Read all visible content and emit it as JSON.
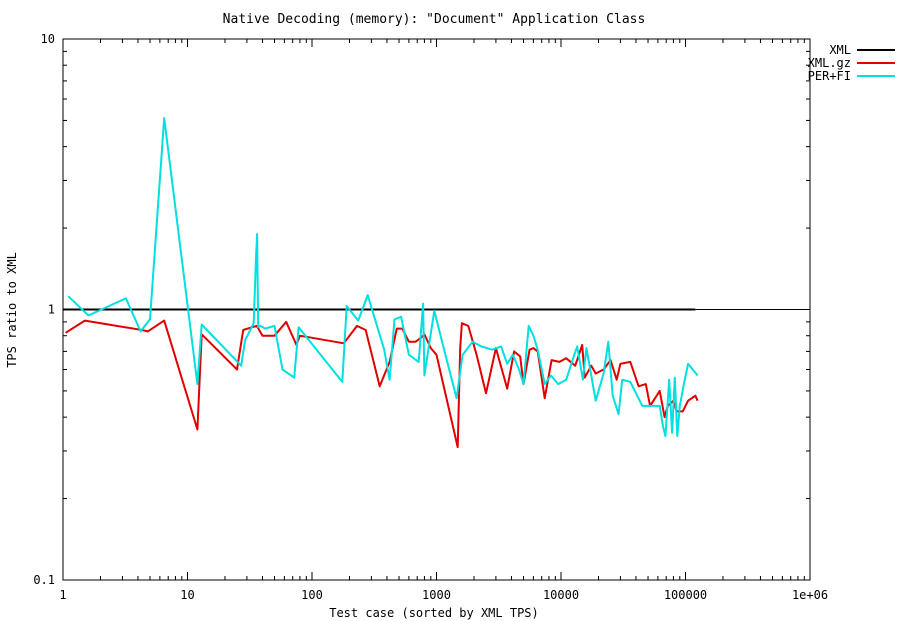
{
  "chart_data": {
    "type": "line",
    "title": "Native Decoding (memory): \"Document\" Application Class",
    "xlabel": "Test case (sorted by XML TPS)",
    "ylabel": "TPS ratio to XML",
    "x_scale": "log",
    "y_scale": "log",
    "xlim": [
      1,
      1000000
    ],
    "ylim": [
      0.1,
      10
    ],
    "x_ticks": [
      "1",
      "10",
      "100",
      "1000",
      "10000",
      "100000",
      "1e+06"
    ],
    "y_ticks": [
      "0.1",
      "1",
      "10"
    ],
    "legend_position": "top-right outside",
    "grid": false,
    "series": [
      {
        "name": "XML",
        "color": "#000000",
        "points": [
          [
            1,
            1.0
          ],
          [
            120000,
            1.0
          ]
        ]
      },
      {
        "name": "XML.gz",
        "color": "#e00000",
        "points": [
          [
            1.05,
            0.82
          ],
          [
            1.5,
            0.91
          ],
          [
            4.3,
            0.84
          ],
          [
            4.8,
            0.83
          ],
          [
            6.5,
            0.91
          ],
          [
            12,
            0.36
          ],
          [
            13,
            0.81
          ],
          [
            25,
            0.6
          ],
          [
            28,
            0.84
          ],
          [
            33,
            0.86
          ],
          [
            36,
            0.87
          ],
          [
            40,
            0.8
          ],
          [
            50,
            0.8
          ],
          [
            62,
            0.9
          ],
          [
            75,
            0.74
          ],
          [
            80,
            0.8
          ],
          [
            180,
            0.75
          ],
          [
            230,
            0.87
          ],
          [
            270,
            0.84
          ],
          [
            350,
            0.52
          ],
          [
            420,
            0.64
          ],
          [
            480,
            0.85
          ],
          [
            530,
            0.85
          ],
          [
            600,
            0.76
          ],
          [
            680,
            0.76
          ],
          [
            760,
            0.79
          ],
          [
            800,
            0.81
          ],
          [
            900,
            0.72
          ],
          [
            1000,
            0.68
          ],
          [
            1480,
            0.31
          ],
          [
            1550,
            0.72
          ],
          [
            1600,
            0.89
          ],
          [
            1800,
            0.87
          ],
          [
            2100,
            0.68
          ],
          [
            2500,
            0.49
          ],
          [
            3000,
            0.72
          ],
          [
            3700,
            0.51
          ],
          [
            4200,
            0.7
          ],
          [
            4700,
            0.67
          ],
          [
            5000,
            0.53
          ],
          [
            5600,
            0.71
          ],
          [
            6000,
            0.72
          ],
          [
            6500,
            0.7
          ],
          [
            7400,
            0.47
          ],
          [
            8400,
            0.65
          ],
          [
            9700,
            0.64
          ],
          [
            11000,
            0.66
          ],
          [
            13000,
            0.62
          ],
          [
            14800,
            0.74
          ],
          [
            15500,
            0.56
          ],
          [
            17500,
            0.62
          ],
          [
            19000,
            0.58
          ],
          [
            22000,
            0.6
          ],
          [
            25000,
            0.65
          ],
          [
            28000,
            0.55
          ],
          [
            30000,
            0.63
          ],
          [
            36000,
            0.64
          ],
          [
            42000,
            0.52
          ],
          [
            48000,
            0.53
          ],
          [
            52000,
            0.44
          ],
          [
            62000,
            0.5
          ],
          [
            68000,
            0.4
          ],
          [
            72000,
            0.44
          ],
          [
            80000,
            0.46
          ],
          [
            85000,
            0.42
          ],
          [
            95000,
            0.42
          ],
          [
            105000,
            0.46
          ],
          [
            120000,
            0.48
          ],
          [
            125000,
            0.46
          ]
        ]
      },
      {
        "name": "PER+FI",
        "color": "#00e0e0",
        "points": [
          [
            1.1,
            1.12
          ],
          [
            1.6,
            0.95
          ],
          [
            3.2,
            1.1
          ],
          [
            4.2,
            0.83
          ],
          [
            5,
            0.92
          ],
          [
            6.5,
            5.1
          ],
          [
            12,
            0.53
          ],
          [
            13,
            0.88
          ],
          [
            27,
            0.62
          ],
          [
            29,
            0.77
          ],
          [
            34,
            0.89
          ],
          [
            35.5,
            1.55
          ],
          [
            36.2,
            1.9
          ],
          [
            37,
            0.86
          ],
          [
            38.5,
            0.87
          ],
          [
            42,
            0.85
          ],
          [
            50,
            0.87
          ],
          [
            58,
            0.6
          ],
          [
            72,
            0.56
          ],
          [
            78,
            0.86
          ],
          [
            175,
            0.54
          ],
          [
            190,
            1.03
          ],
          [
            235,
            0.91
          ],
          [
            280,
            1.13
          ],
          [
            380,
            0.71
          ],
          [
            420,
            0.55
          ],
          [
            460,
            0.92
          ],
          [
            520,
            0.94
          ],
          [
            600,
            0.68
          ],
          [
            720,
            0.64
          ],
          [
            780,
            1.05
          ],
          [
            800,
            0.57
          ],
          [
            960,
            0.99
          ],
          [
            1100,
            0.77
          ],
          [
            1450,
            0.47
          ],
          [
            1620,
            0.68
          ],
          [
            1950,
            0.76
          ],
          [
            2300,
            0.73
          ],
          [
            2800,
            0.71
          ],
          [
            3300,
            0.73
          ],
          [
            3700,
            0.63
          ],
          [
            4100,
            0.68
          ],
          [
            4600,
            0.6
          ],
          [
            5000,
            0.53
          ],
          [
            5500,
            0.87
          ],
          [
            6000,
            0.8
          ],
          [
            6500,
            0.71
          ],
          [
            7400,
            0.53
          ],
          [
            8300,
            0.57
          ],
          [
            9500,
            0.53
          ],
          [
            11000,
            0.55
          ],
          [
            12500,
            0.66
          ],
          [
            13500,
            0.73
          ],
          [
            15000,
            0.55
          ],
          [
            16000,
            0.72
          ],
          [
            19000,
            0.46
          ],
          [
            22000,
            0.58
          ],
          [
            24000,
            0.76
          ],
          [
            26000,
            0.48
          ],
          [
            29000,
            0.41
          ],
          [
            31000,
            0.55
          ],
          [
            36000,
            0.54
          ],
          [
            45000,
            0.44
          ],
          [
            55000,
            0.44
          ],
          [
            62000,
            0.44
          ],
          [
            66000,
            0.37
          ],
          [
            69000,
            0.34
          ],
          [
            74000,
            0.55
          ],
          [
            78000,
            0.35
          ],
          [
            82000,
            0.56
          ],
          [
            86000,
            0.34
          ],
          [
            90000,
            0.44
          ],
          [
            97000,
            0.53
          ],
          [
            105000,
            0.63
          ],
          [
            125000,
            0.57
          ]
        ]
      }
    ]
  }
}
